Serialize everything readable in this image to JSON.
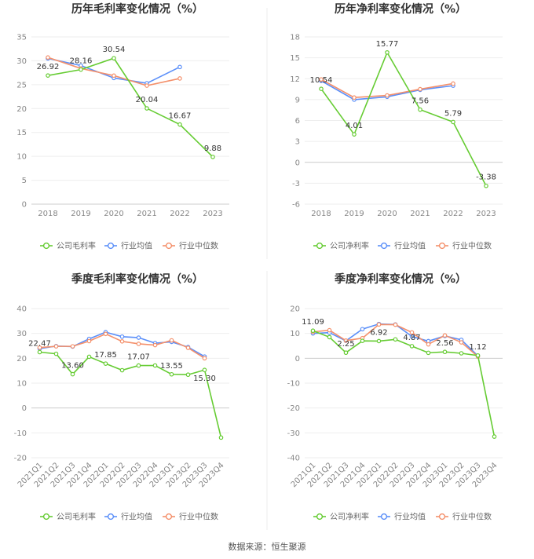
{
  "source_text": "数据来源：恒生聚源",
  "colors": {
    "company": "#66cc33",
    "industry_avg": "#5b8ff9",
    "industry_median": "#f4906b"
  },
  "legend": {
    "industry_avg": "行业均值",
    "industry_median": "行业中位数"
  },
  "chart_data": [
    {
      "type": "line",
      "title": "历年毛利率变化情况（%）",
      "categories": [
        "2018",
        "2019",
        "2020",
        "2021",
        "2022",
        "2023"
      ],
      "ylim": [
        0,
        35
      ],
      "yticks": [
        0,
        5,
        10,
        15,
        20,
        25,
        30,
        35
      ],
      "xlabel_rotated": false,
      "series": [
        {
          "name": "公司毛利率",
          "key": "company",
          "values": [
            26.92,
            28.16,
            30.54,
            20.04,
            16.67,
            9.88
          ]
        },
        {
          "name": "行业均值",
          "key": "industry_avg",
          "values": [
            30.5,
            29.0,
            26.4,
            25.3,
            28.7,
            null
          ]
        },
        {
          "name": "行业中位数",
          "key": "industry_median",
          "values": [
            30.7,
            28.4,
            26.9,
            24.8,
            26.3,
            null
          ]
        }
      ],
      "labels": [
        {
          "i": 0,
          "text": "26.92",
          "pos": "above"
        },
        {
          "i": 1,
          "text": "28.16",
          "pos": "above"
        },
        {
          "i": 2,
          "text": "30.54",
          "pos": "above"
        },
        {
          "i": 3,
          "text": "20.04",
          "pos": "above"
        },
        {
          "i": 4,
          "text": "16.67",
          "pos": "above"
        },
        {
          "i": 5,
          "text": "9.88",
          "pos": "above"
        }
      ]
    },
    {
      "type": "line",
      "title": "历年净利率变化情况（%）",
      "categories": [
        "2018",
        "2019",
        "2020",
        "2021",
        "2022",
        "2023"
      ],
      "ylim": [
        -6,
        18
      ],
      "yticks": [
        -6,
        -3,
        0,
        3,
        6,
        9,
        12,
        15,
        18
      ],
      "xlabel_rotated": false,
      "series": [
        {
          "name": "公司净利率",
          "key": "company",
          "values": [
            10.54,
            4.01,
            15.77,
            7.56,
            5.79,
            -3.38
          ]
        },
        {
          "name": "行业均值",
          "key": "industry_avg",
          "values": [
            11.7,
            9.0,
            9.4,
            10.4,
            11.0,
            null
          ]
        },
        {
          "name": "行业中位数",
          "key": "industry_median",
          "values": [
            11.9,
            9.3,
            9.6,
            10.5,
            11.3,
            null
          ]
        }
      ],
      "labels": [
        {
          "i": 0,
          "text": "10.54",
          "pos": "above"
        },
        {
          "i": 1,
          "text": "4.01",
          "pos": "above"
        },
        {
          "i": 2,
          "text": "15.77",
          "pos": "above"
        },
        {
          "i": 3,
          "text": "7.56",
          "pos": "above"
        },
        {
          "i": 4,
          "text": "5.79",
          "pos": "above"
        },
        {
          "i": 5,
          "text": "-3.38",
          "pos": "above"
        }
      ]
    },
    {
      "type": "line",
      "title": "季度毛利率变化情况（%）",
      "categories": [
        "2021Q1",
        "2021Q2",
        "2021Q3",
        "2021Q4",
        "2022Q1",
        "2022Q2",
        "2022Q3",
        "2022Q4",
        "2023Q1",
        "2023Q2",
        "2023Q3",
        "2023Q4"
      ],
      "ylim": [
        -20,
        40
      ],
      "yticks": [
        -20,
        -10,
        0,
        10,
        20,
        30,
        40
      ],
      "xlabel_rotated": true,
      "series": [
        {
          "name": "公司毛利率",
          "key": "company",
          "values": [
            22.47,
            21.8,
            13.6,
            20.6,
            17.85,
            15.2,
            17.07,
            17.1,
            13.55,
            13.4,
            15.3,
            -11.9
          ]
        },
        {
          "name": "行业均值",
          "key": "industry_avg",
          "values": [
            23.9,
            24.9,
            24.7,
            27.8,
            30.5,
            28.7,
            28.3,
            26.1,
            26.6,
            24.5,
            20.7,
            null
          ]
        },
        {
          "name": "行业中位数",
          "key": "industry_median",
          "values": [
            24.3,
            24.8,
            24.8,
            26.9,
            29.8,
            26.8,
            25.8,
            25.3,
            27.2,
            24.2,
            20.0,
            null
          ]
        }
      ],
      "labels": [
        {
          "i": 0,
          "text": "22.47",
          "pos": "above"
        },
        {
          "i": 2,
          "text": "13.60",
          "pos": "above"
        },
        {
          "i": 4,
          "text": "17.85",
          "pos": "above"
        },
        {
          "i": 6,
          "text": "17.07",
          "pos": "above"
        },
        {
          "i": 8,
          "text": "13.55",
          "pos": "above"
        },
        {
          "i": 10,
          "text": "15.30",
          "pos": "below"
        }
      ]
    },
    {
      "type": "line",
      "title": "季度净利率变化情况（%）",
      "categories": [
        "2021Q1",
        "2021Q2",
        "2021Q3",
        "2021Q4",
        "2022Q1",
        "2022Q2",
        "2022Q3",
        "2022Q4",
        "2023Q1",
        "2023Q2",
        "2023Q3",
        "2023Q4"
      ],
      "ylim": [
        -40,
        20
      ],
      "yticks": [
        -40,
        -30,
        -20,
        -10,
        0,
        10,
        20
      ],
      "xlabel_rotated": true,
      "series": [
        {
          "name": "公司净利率",
          "key": "company",
          "values": [
            11.09,
            8.5,
            2.25,
            7.0,
            6.92,
            7.6,
            4.87,
            2.2,
            2.56,
            2.0,
            1.12,
            -31.5
          ]
        },
        {
          "name": "行业均值",
          "key": "industry_avg",
          "values": [
            10.0,
            10.3,
            7.0,
            11.7,
            13.8,
            13.6,
            8.8,
            6.9,
            9.0,
            7.4,
            1.0,
            null
          ]
        },
        {
          "name": "行业中位数",
          "key": "industry_median",
          "values": [
            10.6,
            11.3,
            7.1,
            8.1,
            13.6,
            13.5,
            10.4,
            5.6,
            9.2,
            6.4,
            0.7,
            null
          ]
        }
      ],
      "labels": [
        {
          "i": 0,
          "text": "11.09",
          "pos": "above"
        },
        {
          "i": 2,
          "text": "2.25",
          "pos": "above"
        },
        {
          "i": 4,
          "text": "6.92",
          "pos": "above"
        },
        {
          "i": 6,
          "text": "4.87",
          "pos": "above"
        },
        {
          "i": 8,
          "text": "2.56",
          "pos": "above"
        },
        {
          "i": 10,
          "text": "1.12",
          "pos": "above"
        }
      ]
    }
  ]
}
